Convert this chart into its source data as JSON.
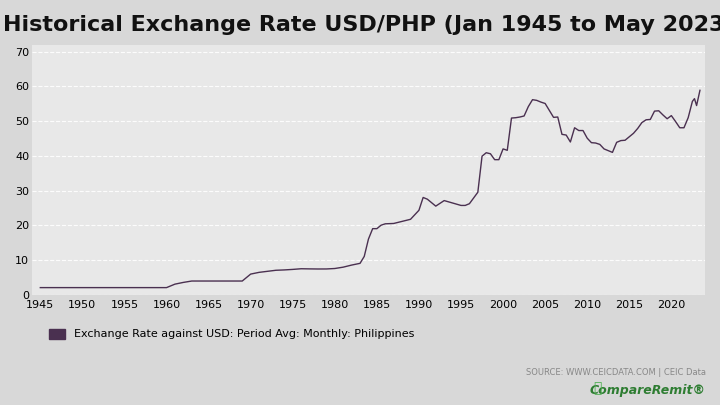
{
  "title": "Historical Exchange Rate USD/PHP (Jan 1945 to May 2023)",
  "title_fontsize": 16,
  "line_color": "#4a3050",
  "line_width": 1.0,
  "background_color": "#d8d8d8",
  "plot_bg_color": "#e8e8e8",
  "ylabel": "",
  "xlabel": "",
  "yticks": [
    0,
    10,
    20,
    30,
    40,
    50,
    60,
    70
  ],
  "xticks": [
    1945,
    1950,
    1955,
    1960,
    1965,
    1970,
    1975,
    1980,
    1985,
    1990,
    1995,
    2000,
    2005,
    2010,
    2015,
    2020
  ],
  "ylim": [
    0,
    72
  ],
  "xlim": [
    1944,
    2024
  ],
  "legend_label": "Exchange Rate against USD: Period Avg: Monthly: Philippines",
  "source_text": "SOURCE: WWW.CEICDATA.COM | CEIC Data",
  "grid_color": "#ffffff",
  "grid_alpha": 0.9,
  "grid_linestyle": "--",
  "data_x": [
    1945.0,
    1945.5,
    1946.0,
    1946.5,
    1947.0,
    1948.0,
    1949.0,
    1950.0,
    1951.0,
    1952.0,
    1953.0,
    1954.0,
    1955.0,
    1956.0,
    1957.0,
    1958.0,
    1959.0,
    1960.0,
    1961.0,
    1962.0,
    1963.0,
    1964.0,
    1965.0,
    1966.0,
    1967.0,
    1968.0,
    1969.0,
    1970.0,
    1971.0,
    1972.0,
    1973.0,
    1974.0,
    1975.0,
    1976.0,
    1977.0,
    1978.0,
    1979.0,
    1980.0,
    1981.0,
    1982.0,
    1983.0,
    1983.5,
    1984.0,
    1984.5,
    1985.0,
    1985.5,
    1986.0,
    1987.0,
    1988.0,
    1989.0,
    1990.0,
    1990.5,
    1991.0,
    1992.0,
    1993.0,
    1994.0,
    1995.0,
    1995.5,
    1996.0,
    1997.0,
    1997.5,
    1998.0,
    1998.5,
    1999.0,
    1999.5,
    2000.0,
    2000.5,
    2001.0,
    2001.5,
    2002.0,
    2002.5,
    2003.0,
    2003.5,
    2004.0,
    2004.5,
    2005.0,
    2005.5,
    2006.0,
    2006.5,
    2007.0,
    2007.5,
    2008.0,
    2008.5,
    2009.0,
    2009.5,
    2010.0,
    2010.5,
    2011.0,
    2011.5,
    2012.0,
    2012.5,
    2013.0,
    2013.5,
    2014.0,
    2014.5,
    2015.0,
    2015.5,
    2016.0,
    2016.5,
    2017.0,
    2017.5,
    2018.0,
    2018.5,
    2019.0,
    2019.5,
    2020.0,
    2020.5,
    2021.0,
    2021.5,
    2022.0,
    2022.5,
    2022.75,
    2023.0,
    2023.4
  ],
  "data_y": [
    2.0,
    2.0,
    2.0,
    2.0,
    2.0,
    2.0,
    2.0,
    2.0,
    2.0,
    2.0,
    2.0,
    2.0,
    2.0,
    2.0,
    2.0,
    2.0,
    2.0,
    2.0,
    3.0,
    3.5,
    3.9,
    3.9,
    3.9,
    3.9,
    3.9,
    3.9,
    3.9,
    5.9,
    6.4,
    6.7,
    7.0,
    7.1,
    7.25,
    7.44,
    7.4,
    7.37,
    7.38,
    7.51,
    7.9,
    8.5,
    9.0,
    11.0,
    16.0,
    19.0,
    19.0,
    20.0,
    20.4,
    20.5,
    21.1,
    21.7,
    24.3,
    28.0,
    27.5,
    25.5,
    27.1,
    26.4,
    25.7,
    25.7,
    26.2,
    29.5,
    39.9,
    40.9,
    40.6,
    38.9,
    38.9,
    42.0,
    41.6,
    50.9,
    51.0,
    51.2,
    51.5,
    54.2,
    56.2,
    56.0,
    55.5,
    55.1,
    53.1,
    51.1,
    51.2,
    46.2,
    46.0,
    44.0,
    48.1,
    47.3,
    47.3,
    45.1,
    43.8,
    43.7,
    43.3,
    42.0,
    41.5,
    41.0,
    43.9,
    44.4,
    44.5,
    45.5,
    46.5,
    47.9,
    49.6,
    50.4,
    50.5,
    52.9,
    53.0,
    51.8,
    50.7,
    51.6,
    49.9,
    48.1,
    48.1,
    51.0,
    55.7,
    56.5,
    54.5,
    58.9
  ]
}
